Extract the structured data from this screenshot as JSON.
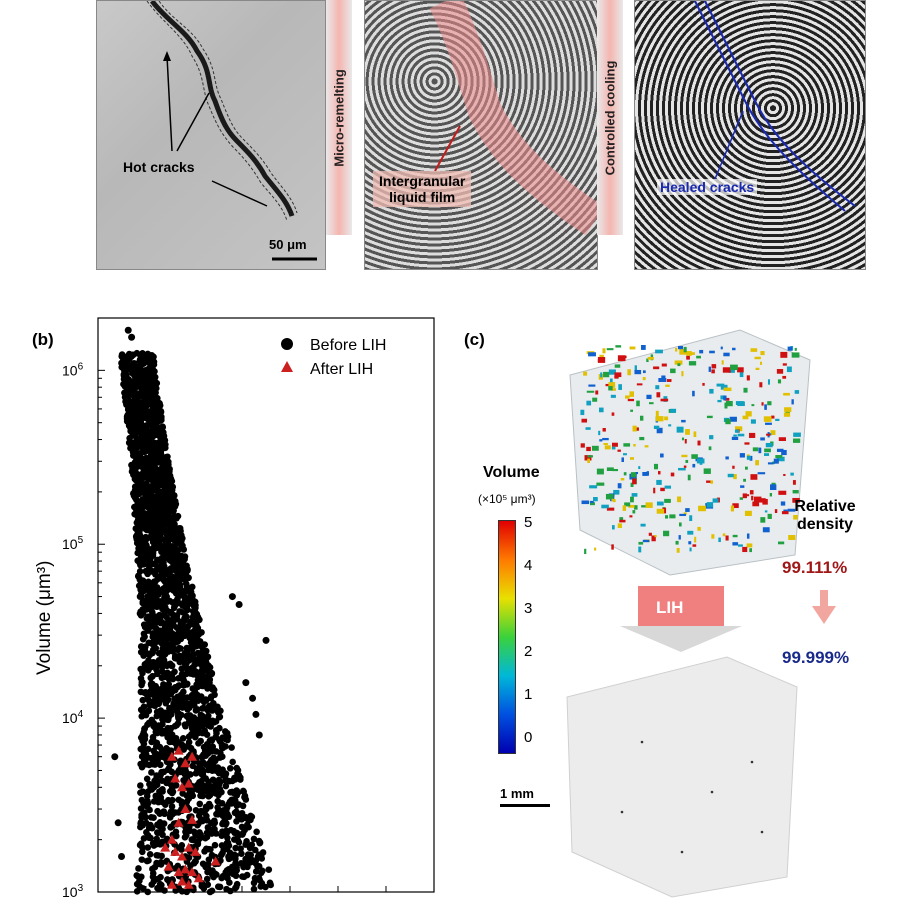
{
  "panel_a": {
    "label_hot_cracks": "Hot cracks",
    "scale_bar": "50 μm",
    "arrow1_text": "Micro-remelting",
    "label_liquid_film_line1": "Intergranular",
    "label_liquid_film_line2": "liquid film",
    "arrow2_text": "Controlled cooling",
    "label_healed": "Healed cracks"
  },
  "panel_b": {
    "label": "(b)",
    "ylabel": "Volume (μm³)",
    "legend_before": "Before LIH",
    "legend_after": "After LIH"
  },
  "panel_c": {
    "label": "(c)",
    "colorbar_title": "Volume",
    "colorbar_unit": "(×10⁵ μm³)",
    "colorbar_ticks": [
      "5",
      "4",
      "3",
      "2",
      "1",
      "0"
    ],
    "relative_density_line1": "Relative",
    "relative_density_line2": "density",
    "density_before": "99.111%",
    "density_after": "99.999%",
    "process_label": "LIH",
    "scale_bar": "1 mm",
    "colors": {
      "before": "#a01818",
      "after": "#1a2a8a"
    }
  },
  "chart_data": {
    "type": "scatter",
    "ylabel": "Volume (μm³)",
    "yscale": "log",
    "ylim": [
      1000,
      2000000
    ],
    "yticks": [
      "10^3",
      "10^4",
      "10^5",
      "10^6"
    ],
    "legend": "top-right",
    "series": [
      {
        "name": "Before LIH",
        "marker": "circle",
        "color": "#000000",
        "points": [
          [
            0.09,
            1700000.0
          ],
          [
            0.1,
            1550000.0
          ],
          [
            0.11,
            1000000.0
          ],
          [
            0.12,
            900000.0
          ],
          [
            0.13,
            800000.0
          ],
          [
            0.12,
            600000.0
          ],
          [
            0.14,
            400000.0
          ],
          [
            0.15,
            300000.0
          ],
          [
            0.16,
            200000.0
          ],
          [
            0.17,
            150000.0
          ],
          [
            0.18,
            100000.0
          ],
          [
            0.19,
            70000.0
          ],
          [
            0.2,
            50000.0
          ],
          [
            0.21,
            30000.0
          ],
          [
            0.22,
            20000.0
          ],
          [
            0.23,
            15000.0
          ],
          [
            0.24,
            10000.0
          ],
          [
            0.25,
            7000.0
          ],
          [
            0.26,
            5000.0
          ],
          [
            0.27,
            3000.0
          ],
          [
            0.28,
            2000.0
          ],
          [
            0.29,
            1500.0
          ],
          [
            0.3,
            1200.0
          ],
          [
            0.4,
            50000.0
          ],
          [
            0.42,
            45000.0
          ],
          [
            0.5,
            28000.0
          ],
          [
            0.44,
            16000.0
          ],
          [
            0.46,
            13000.0
          ],
          [
            0.47,
            10500.0
          ],
          [
            0.48,
            8000.0
          ],
          [
            0.05,
            6000.0
          ],
          [
            0.06,
            2500.0
          ],
          [
            0.07,
            1600.0
          ]
        ],
        "note_x": "dense cloud spanning roughly 1e3 to 1e6 narrowing toward higher volume"
      },
      {
        "name": "After LIH",
        "marker": "triangle",
        "color": "#cc1f1f",
        "points": [
          [
            0.22,
            6000.0
          ],
          [
            0.24,
            6500.0
          ],
          [
            0.26,
            5500.0
          ],
          [
            0.28,
            6000.0
          ],
          [
            0.23,
            4500.0
          ],
          [
            0.25,
            4000.0
          ],
          [
            0.27,
            4200.0
          ],
          [
            0.26,
            3000.0
          ],
          [
            0.24,
            2500.0
          ],
          [
            0.28,
            2600.0
          ],
          [
            0.22,
            2000.0
          ],
          [
            0.2,
            1800.0
          ],
          [
            0.23,
            1700.0
          ],
          [
            0.25,
            1600.0
          ],
          [
            0.27,
            1800.0
          ],
          [
            0.29,
            1700.0
          ],
          [
            0.21,
            1400.0
          ],
          [
            0.24,
            1300.0
          ],
          [
            0.26,
            1350.0
          ],
          [
            0.28,
            1300.0
          ],
          [
            0.3,
            1200.0
          ],
          [
            0.22,
            1100.0
          ],
          [
            0.25,
            1150.0
          ],
          [
            0.27,
            1100.0
          ],
          [
            0.35,
            1500.0
          ]
        ]
      }
    ]
  }
}
